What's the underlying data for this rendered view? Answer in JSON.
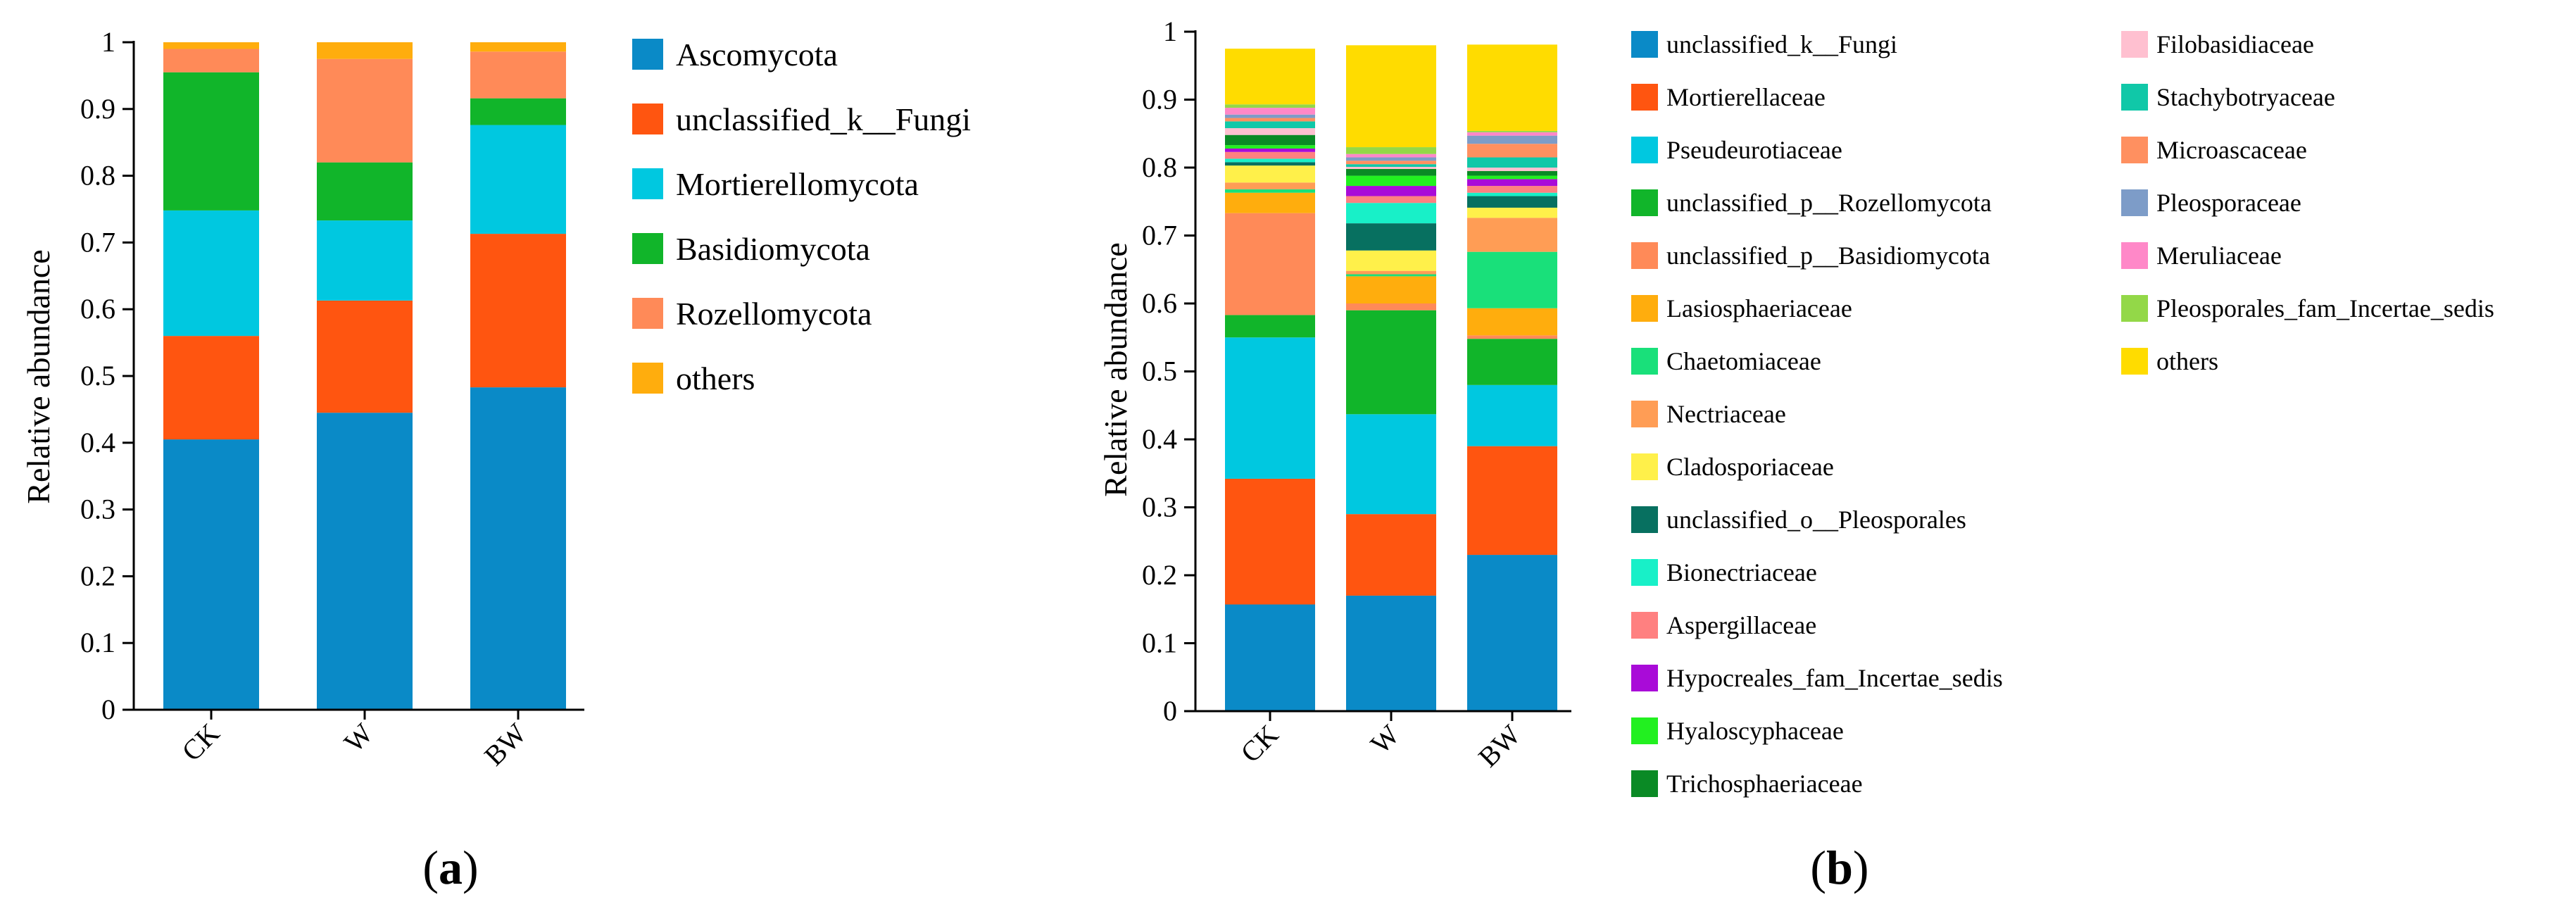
{
  "figure": {
    "panels": [
      {
        "open": "(",
        "letter": "a",
        "close": ")"
      },
      {
        "open": "(",
        "letter": "b",
        "close": ")"
      }
    ]
  },
  "chart_data": [
    {
      "type": "bar",
      "stacked": true,
      "panel": "a",
      "ylabel": "Relative abundance",
      "xlabel": "",
      "ylim": [
        0,
        1
      ],
      "yticks": [
        "0",
        "0.1",
        "0.2",
        "0.3",
        "0.4",
        "0.5",
        "0.6",
        "0.7",
        "0.8",
        "0.9",
        "1"
      ],
      "categories": [
        "CK",
        "W",
        "BW"
      ],
      "legend_position": "right",
      "series": [
        {
          "name": "Ascomycota",
          "color": "#0a8ac7",
          "values": [
            0.405,
            0.445,
            0.483
          ]
        },
        {
          "name": "unclassified_k__Fungi",
          "color": "#ff5510",
          "values": [
            0.155,
            0.168,
            0.23
          ]
        },
        {
          "name": "Mortierellomycota",
          "color": "#00c8e0",
          "values": [
            0.188,
            0.12,
            0.163
          ]
        },
        {
          "name": "Basidiomycota",
          "color": "#11b52a",
          "values": [
            0.207,
            0.087,
            0.04
          ]
        },
        {
          "name": "Rozellomycota",
          "color": "#ff8a58",
          "values": [
            0.035,
            0.155,
            0.07
          ]
        },
        {
          "name": "others",
          "color": "#ffad0d",
          "values": [
            0.01,
            0.025,
            0.014
          ]
        }
      ]
    },
    {
      "type": "bar",
      "stacked": true,
      "panel": "b",
      "ylabel": "Relative abundance",
      "xlabel": "",
      "ylim": [
        0,
        1
      ],
      "yticks": [
        "0",
        "0.1",
        "0.2",
        "0.3",
        "0.4",
        "0.5",
        "0.6",
        "0.7",
        "0.8",
        "0.9",
        "1"
      ],
      "categories": [
        "CK",
        "W",
        "BW"
      ],
      "legend_position": "right",
      "series": [
        {
          "name": "unclassified_k__Fungi",
          "color": "#0a8ac7",
          "values": [
            0.157,
            0.17,
            0.23
          ]
        },
        {
          "name": "Mortierellaceae",
          "color": "#ff5510",
          "values": [
            0.185,
            0.12,
            0.16
          ]
        },
        {
          "name": "Pseudeurotiaceae",
          "color": "#00c8e0",
          "values": [
            0.208,
            0.147,
            0.09
          ]
        },
        {
          "name": "unclassified_p__Rozellomycota",
          "color": "#11b52a",
          "values": [
            0.033,
            0.153,
            0.068
          ]
        },
        {
          "name": "unclassified_p__Basidiomycota",
          "color": "#ff8a58",
          "values": [
            0.15,
            0.01,
            0.005
          ]
        },
        {
          "name": "Lasiosphaeriaceae",
          "color": "#ffad0d",
          "values": [
            0.03,
            0.04,
            0.04
          ]
        },
        {
          "name": "Chaetomiaceae",
          "color": "#19e07a",
          "values": [
            0.005,
            0.003,
            0.083
          ]
        },
        {
          "name": "Nectriaceae",
          "color": "#ff9d55",
          "values": [
            0.01,
            0.005,
            0.05
          ]
        },
        {
          "name": "Cladosporiaceae",
          "color": "#fff04a",
          "values": [
            0.025,
            0.03,
            0.015
          ]
        },
        {
          "name": "unclassified_o__Pleosporales",
          "color": "#077060",
          "values": [
            0.005,
            0.04,
            0.017
          ]
        },
        {
          "name": "Bionectriaceae",
          "color": "#18f0c8",
          "values": [
            0.005,
            0.03,
            0.005
          ]
        },
        {
          "name": "Aspergillaceae",
          "color": "#ff8080",
          "values": [
            0.01,
            0.01,
            0.01
          ]
        },
        {
          "name": "Hypocreales_fam_Incertae_sedis",
          "color": "#a90bd8",
          "values": [
            0.005,
            0.015,
            0.01
          ]
        },
        {
          "name": "Hyaloscyphaceae",
          "color": "#22f020",
          "values": [
            0.005,
            0.015,
            0.005
          ]
        },
        {
          "name": "Trichosphaeriaceae",
          "color": "#0a8a25",
          "values": [
            0.015,
            0.01,
            0.007
          ]
        },
        {
          "name": "Filobasidiaceae",
          "color": "#ffc0d0",
          "values": [
            0.01,
            0.003,
            0.005
          ]
        },
        {
          "name": "Stachybotryaceae",
          "color": "#10c8a8",
          "values": [
            0.01,
            0.004,
            0.015
          ]
        },
        {
          "name": "Microascaceae",
          "color": "#ff9060",
          "values": [
            0.005,
            0.005,
            0.02
          ]
        },
        {
          "name": "Pleosporaceae",
          "color": "#7d9cc8",
          "values": [
            0.005,
            0.005,
            0.012
          ]
        },
        {
          "name": "Meruliaceae",
          "color": "#ff88c8",
          "values": [
            0.01,
            0.005,
            0.005
          ]
        },
        {
          "name": "Pleosporales_fam_Incertae_sedis",
          "color": "#93d848",
          "values": [
            0.005,
            0.01,
            0.002
          ]
        },
        {
          "name": "others",
          "color": "#ffdc00",
          "values": [
            0.082,
            0.15,
            0.127
          ]
        }
      ]
    }
  ]
}
